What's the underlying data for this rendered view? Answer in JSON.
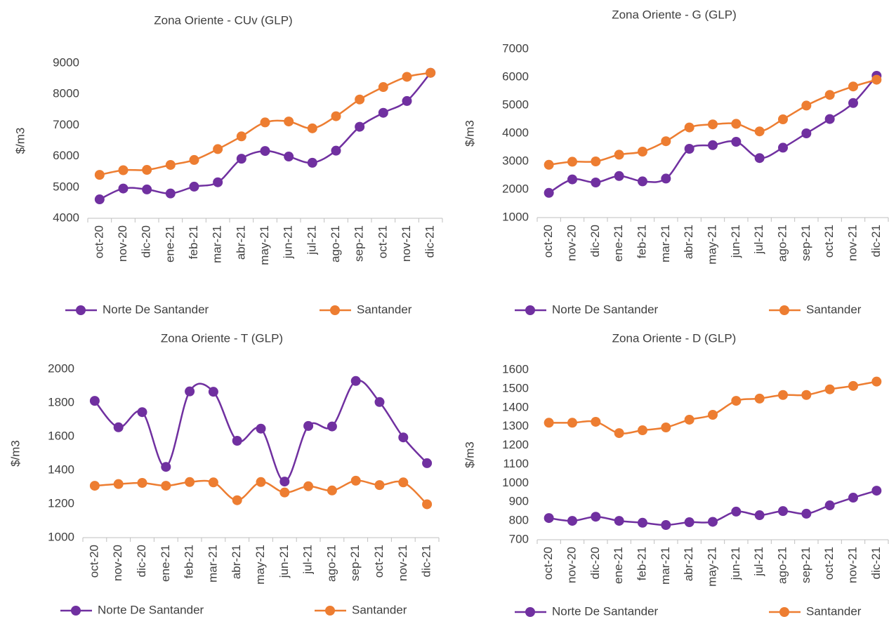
{
  "chart_data": [
    {
      "type": "line",
      "title": "Zona Oriente - CUv (GLP)",
      "y_label": "$/m3",
      "smooth": true,
      "legend": "bottom",
      "categories": [
        "oct-20",
        "nov-20",
        "dic-20",
        "ene-21",
        "feb-21",
        "mar-21",
        "abr-21",
        "may-21",
        "jun-21",
        "jul-21",
        "ago-21",
        "sep-21",
        "oct-21",
        "nov-21",
        "dic-21"
      ],
      "series": [
        {
          "name": "Norte De Santander",
          "color": "#7030a0",
          "values": [
            4610,
            4960,
            4930,
            4800,
            5020,
            5160,
            5920,
            6170,
            5990,
            5790,
            6180,
            6950,
            7400,
            7780,
            8690
          ]
        },
        {
          "name": "Santander",
          "color": "#ed7d31",
          "values": [
            5400,
            5550,
            5560,
            5720,
            5880,
            6230,
            6640,
            7090,
            7120,
            6900,
            7290,
            7830,
            8230,
            8560,
            8690
          ]
        }
      ],
      "ylim": [
        4000,
        9000
      ],
      "yticks": [
        4000,
        5000,
        6000,
        7000,
        8000,
        9000
      ]
    },
    {
      "type": "line",
      "title": "Zona Oriente - G (GLP)",
      "y_label": "$/m3",
      "smooth": true,
      "legend": "bottom",
      "categories": [
        "oct-20",
        "nov-20",
        "dic-20",
        "ene-21",
        "feb-21",
        "mar-21",
        "abr-21",
        "may-21",
        "jun-21",
        "jul-21",
        "ago-21",
        "sep-21",
        "oct-21",
        "nov-21",
        "dic-21"
      ],
      "series": [
        {
          "name": "Norte De Santander",
          "color": "#7030a0",
          "values": [
            1880,
            2360,
            2250,
            2480,
            2290,
            2390,
            3450,
            3580,
            3700,
            3120,
            3490,
            4000,
            4510,
            5080,
            6050
          ]
        },
        {
          "name": "Santander",
          "color": "#ed7d31",
          "values": [
            2880,
            2990,
            3000,
            3240,
            3350,
            3720,
            4210,
            4320,
            4340,
            4070,
            4500,
            4990,
            5370,
            5670,
            5910
          ]
        }
      ],
      "ylim": [
        1000,
        7000
      ],
      "yticks": [
        1000,
        2000,
        3000,
        4000,
        5000,
        6000,
        7000
      ]
    },
    {
      "type": "line",
      "title": "Zona Oriente - T (GLP)",
      "y_label": "$/m3",
      "smooth": true,
      "legend": "bottom",
      "categories": [
        "oct-20",
        "nov-20",
        "dic-20",
        "ene-21",
        "feb-21",
        "mar-21",
        "abr-21",
        "may-21",
        "jun-21",
        "jul-21",
        "ago-21",
        "sep-21",
        "oct-21",
        "nov-21",
        "dic-21"
      ],
      "series": [
        {
          "name": "Norte De Santander",
          "color": "#7030a0",
          "values": [
            1812,
            1655,
            1745,
            1420,
            1868,
            1866,
            1575,
            1647,
            1333,
            1663,
            1660,
            1930,
            1805,
            1595,
            1442
          ]
        },
        {
          "name": "Santander",
          "color": "#ed7d31",
          "values": [
            1308,
            1318,
            1325,
            1308,
            1330,
            1328,
            1222,
            1330,
            1268,
            1305,
            1280,
            1338,
            1312,
            1328,
            1198
          ]
        }
      ],
      "ylim": [
        1000,
        2000
      ],
      "yticks": [
        1000,
        1200,
        1400,
        1600,
        1800,
        2000
      ]
    },
    {
      "type": "line",
      "title": "Zona Oriente - D (GLP)",
      "y_label": "$/m3",
      "smooth": true,
      "legend": "bottom",
      "categories": [
        "oct-20",
        "nov-20",
        "dic-20",
        "ene-21",
        "feb-21",
        "mar-21",
        "abr-21",
        "may-21",
        "jun-21",
        "jul-21",
        "ago-21",
        "sep-21",
        "oct-21",
        "nov-21",
        "dic-21"
      ],
      "series": [
        {
          "name": "Norte De Santander",
          "color": "#7030a0",
          "values": [
            815,
            800,
            822,
            800,
            790,
            778,
            793,
            795,
            849,
            830,
            852,
            838,
            882,
            923,
            960
          ]
        },
        {
          "name": "Santander",
          "color": "#ed7d31",
          "values": [
            1320,
            1320,
            1325,
            1265,
            1280,
            1295,
            1336,
            1362,
            1436,
            1448,
            1467,
            1467,
            1497,
            1515,
            1538
          ]
        }
      ],
      "ylim": [
        700,
        1600
      ],
      "yticks": [
        700,
        800,
        900,
        1000,
        1100,
        1200,
        1300,
        1400,
        1500,
        1600
      ]
    }
  ]
}
